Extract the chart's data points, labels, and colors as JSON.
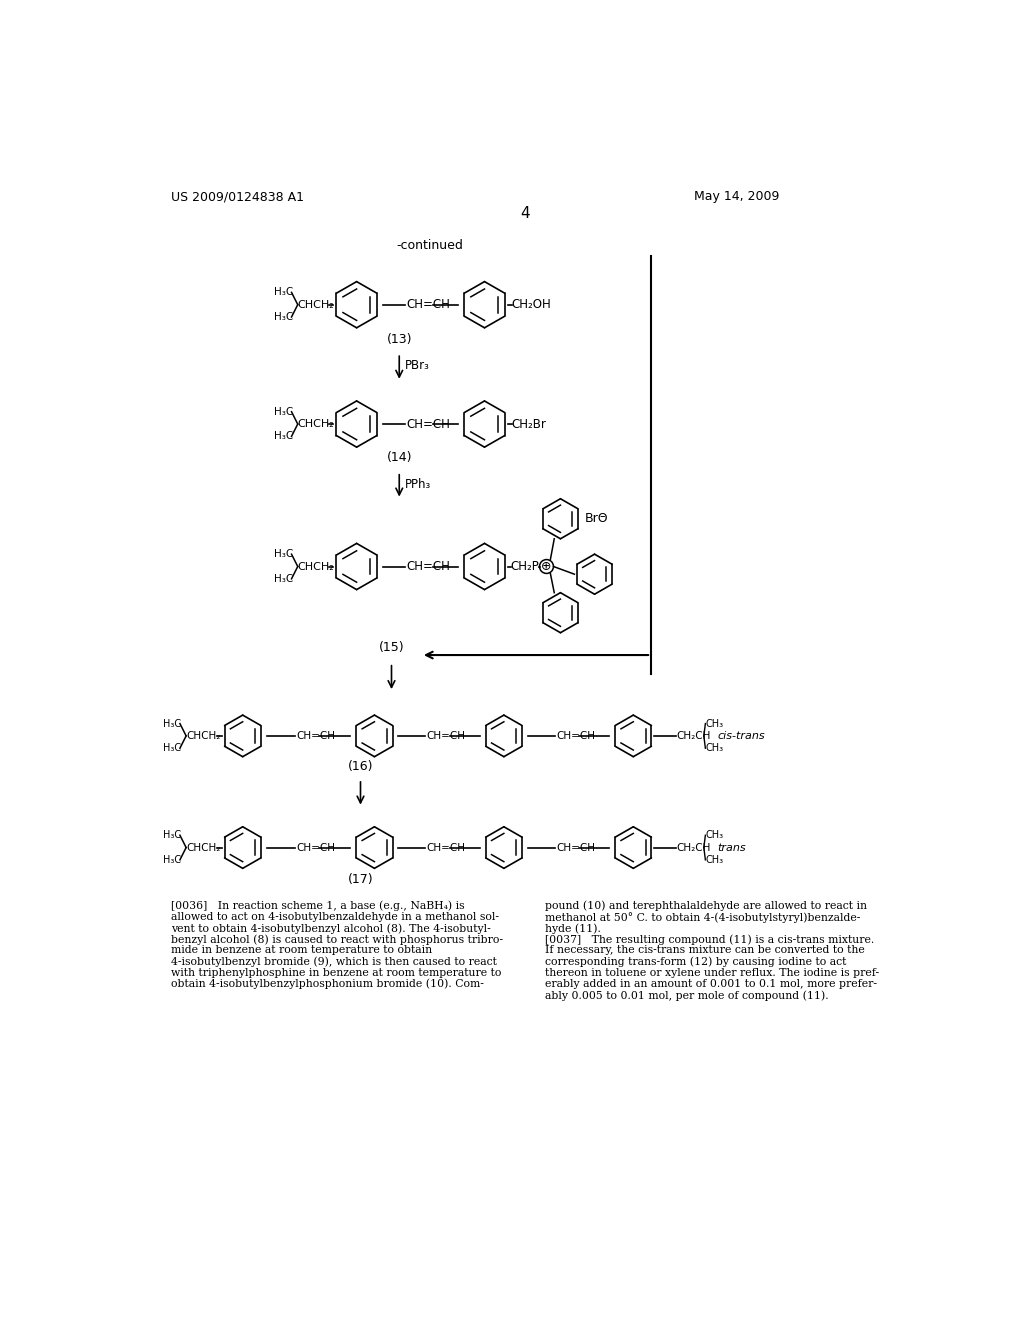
{
  "bg": "#ffffff",
  "patent_left": "US 2009/0124838 A1",
  "patent_right": "May 14, 2009",
  "page": "4",
  "continued": "-continued",
  "comp_labels": [
    "(13)",
    "(14)",
    "(15)",
    "(16)",
    "(17)"
  ],
  "reagent1": "PBr₃",
  "reagent2": "PPh₃",
  "cis_trans": "cis-trans",
  "trans_only": "trans",
  "left_para": "[0036]   In reaction scheme 1, a base (e.g., NaBH₄) is\nallowed to act on 4-isobutylbenzaldehyde in a methanol sol-\nvent to obtain 4-isobutylbenzyl alcohol (8). The 4-isobutyl-\nbenzyl alcohol (8) is caused to react with phosphorus tribro-\nmide in benzene at room temperature to obtain\n4-isobutylbenzyl bromide (9), which is then caused to react\nwith triphenylphosphine in benzene at room temperature to\nobtain 4-isobutylbenzylphosphonium bromide (10). Com-",
  "right_para": "pound (10) and terephthalaldehyde are allowed to react in\nmethanol at 50° C. to obtain 4-(4-isobutylstyryl)benzalde-\nhyde (11).\n[0037]   The resulting compound (11) is a cis-trans mixture.\nIf necessary, the cis-trans mixture can be converted to the\ncorresponding trans-form (12) by causing iodine to act\nthereon in toluene or xylene under reflux. The iodine is pref-\nerably added in an amount of 0.001 to 0.1 mol, more prefer-\nably 0.005 to 0.01 mol, per mole of compound (11)."
}
